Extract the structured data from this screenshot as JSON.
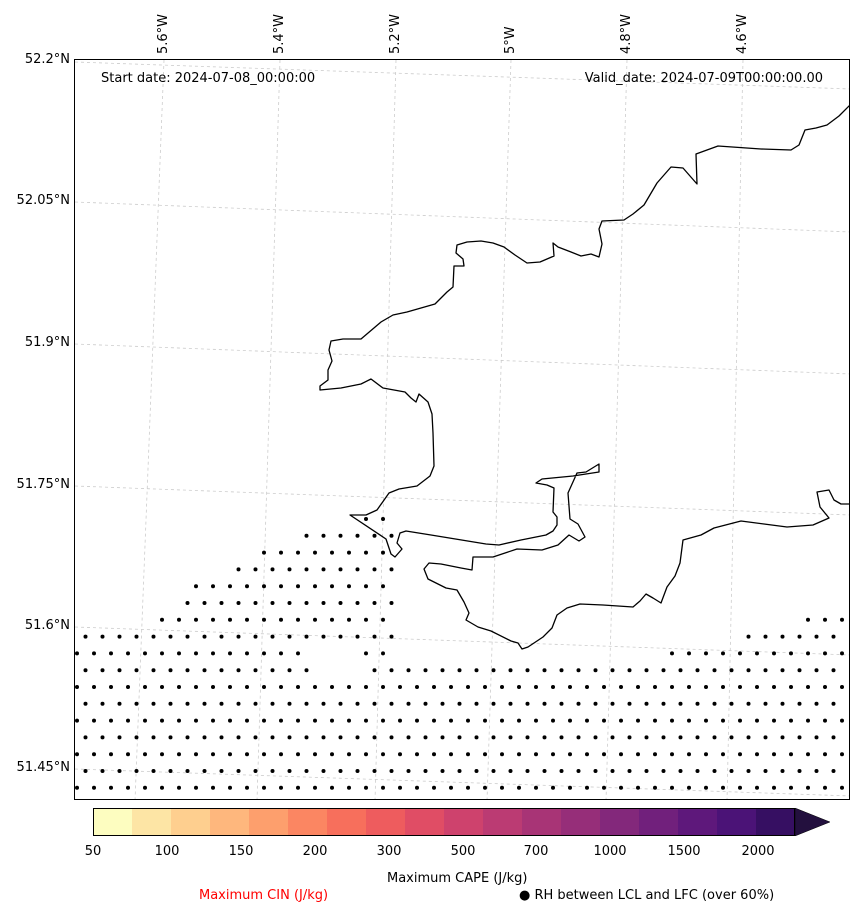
{
  "map": {
    "start_date": "Start date: 2024-07-08_00:00:00",
    "valid_date": "Valid_date: 2024-07-09T00:00:00.00",
    "lat_labels": [
      "52.2°N",
      "52.05°N",
      "51.9°N",
      "51.75°N",
      "51.6°N",
      "51.45°N"
    ],
    "lon_labels": [
      "5.6°W",
      "5.4°W",
      "5.2°W",
      "5°W",
      "4.8°W",
      "4.6°W"
    ],
    "coastline_color": "#000000",
    "gridline_color": "#cccccc",
    "stipple_color": "#000000"
  },
  "colorbar": {
    "label": "Maximum CAPE (J/kg)",
    "tick_labels": [
      "50",
      "100",
      "150",
      "200",
      "300",
      "500",
      "700",
      "1000",
      "1500",
      "2000"
    ],
    "colors": [
      "#fdfdc0",
      "#fde5a5",
      "#fecf8f",
      "#feb77d",
      "#fd9f6d",
      "#fb8662",
      "#f76f5c",
      "#ee5c5e",
      "#e04d65",
      "#ce426d",
      "#bb3b73",
      "#a83476",
      "#962e79",
      "#83287b",
      "#71207c",
      "#5e187b",
      "#4b1377",
      "#360f62",
      "#23103e"
    ],
    "extend": "max"
  },
  "footer": {
    "cin_label": "Maximum CIN (J/kg)",
    "cin_color": "#ff0000",
    "rh_symbol": "●",
    "rh_label": "RH between LCL and LFC (over 60%)"
  }
}
